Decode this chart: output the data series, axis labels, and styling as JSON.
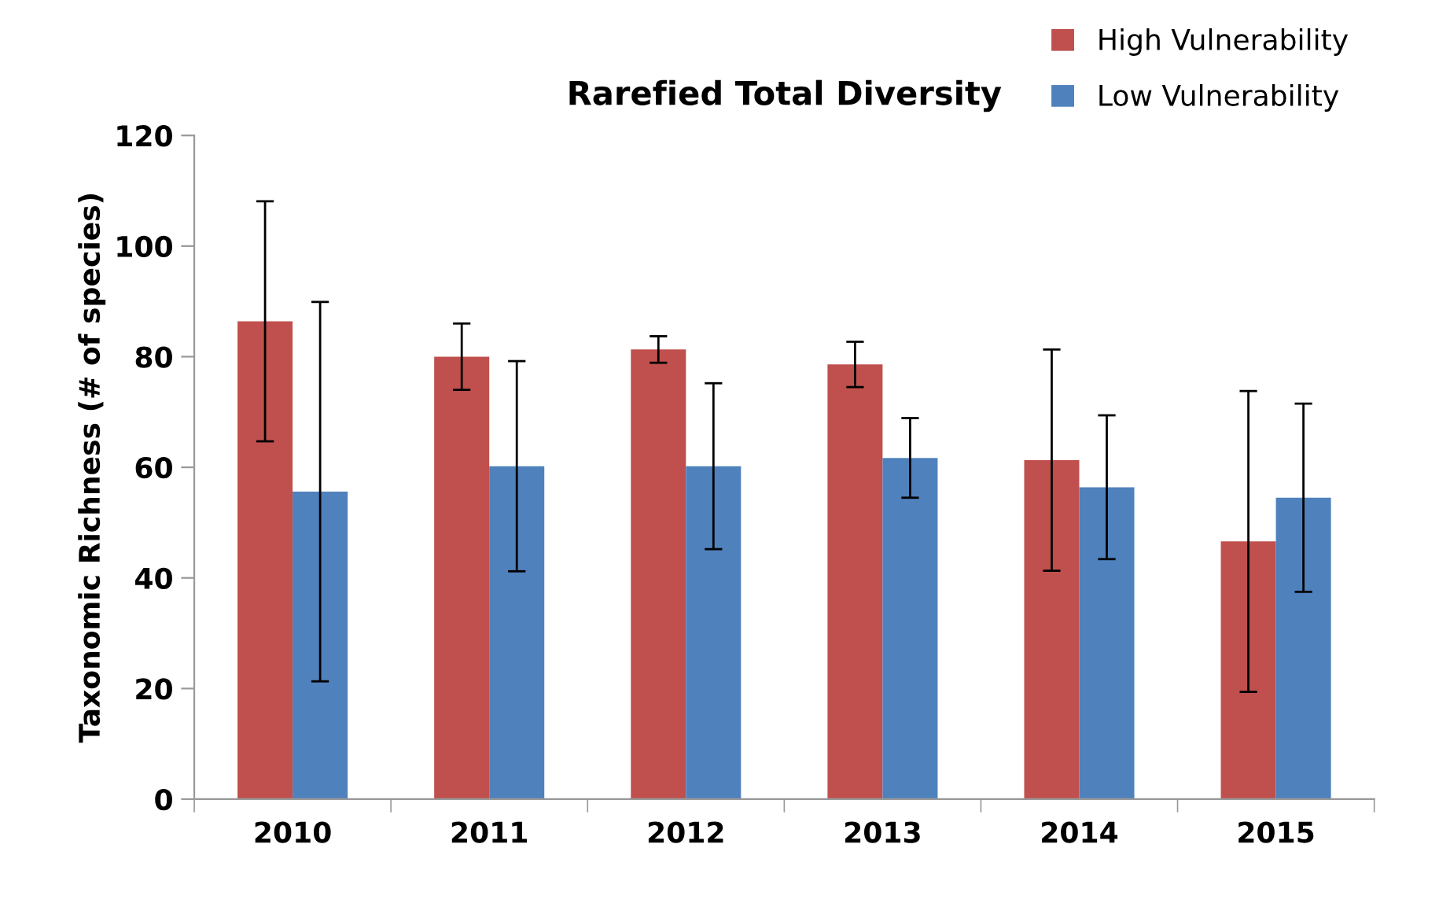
{
  "chart_data": {
    "type": "bar",
    "title": "Rarefied Total Diversity",
    "ylabel": "Taxonomic Richness (# of species)",
    "categories": [
      "2010",
      "2011",
      "2012",
      "2013",
      "2014",
      "2015"
    ],
    "series": [
      {
        "name": "High Vulnerability",
        "color": "#c0504d",
        "values": [
          86.4,
          80.0,
          81.3,
          78.6,
          61.3,
          46.6
        ],
        "errors": [
          21.7,
          6.0,
          2.4,
          4.1,
          20.0,
          27.2
        ]
      },
      {
        "name": "Low Vulnerability",
        "color": "#4f81bd",
        "values": [
          55.6,
          60.2,
          60.2,
          61.7,
          56.4,
          54.5
        ],
        "errors": [
          34.3,
          19.0,
          15.0,
          7.2,
          13.0,
          17.0
        ]
      }
    ],
    "ylim": [
      0,
      120
    ],
    "yticks": [
      0,
      20,
      40,
      60,
      80,
      100,
      120
    ],
    "grid": false,
    "legend": "top right"
  }
}
